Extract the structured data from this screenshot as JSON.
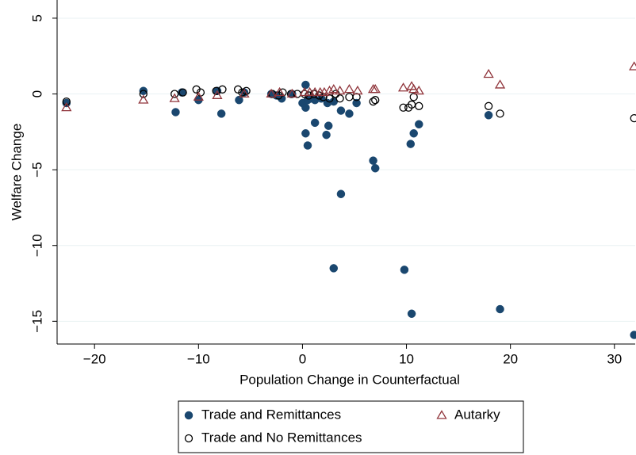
{
  "chart_data": {
    "type": "scatter",
    "x_label": "Population Change in Counterfactual",
    "y_label": "Welfare Change",
    "xlim": [
      -23.6,
      32
    ],
    "ylim": [
      -16.5,
      6.2
    ],
    "xticks": [
      {
        "value": -20,
        "label": "−20"
      },
      {
        "value": -10,
        "label": "−10"
      },
      0,
      10,
      20,
      30
    ],
    "yticks": [
      5,
      0,
      {
        "value": -5,
        "label": "−5"
      },
      {
        "value": -10,
        "label": "−10"
      },
      {
        "value": -15,
        "label": "−15"
      }
    ],
    "grid": true,
    "legend": "bottom",
    "series": [
      {
        "name": "Trade and Remittances",
        "color": "#1a476f",
        "marker": "filled-circle",
        "x": [
          -22.7,
          -15.3,
          -12.2,
          -11.6,
          -10,
          -8.2,
          -7.8,
          -6.1,
          -5.6,
          -3,
          -2.5,
          -2,
          -1,
          0,
          0.3,
          0.3,
          0.5,
          0.8,
          1.2,
          1.8,
          2.4,
          3,
          3.7,
          4.5,
          5.2,
          0.3,
          0.5,
          1.2,
          2.3,
          2.5,
          3.7,
          6.8,
          7,
          3,
          9.8,
          10.5,
          10.4,
          10.7,
          11.2,
          17.9,
          19,
          31.9
        ],
        "values": [
          -0.6,
          0.2,
          -1.2,
          0.1,
          -0.4,
          0.2,
          -1.3,
          -0.4,
          0.1,
          0,
          -0.1,
          -0.3,
          0,
          -0.6,
          0.6,
          -0.9,
          -0.4,
          -0.3,
          -0.4,
          -0.3,
          -0.6,
          -0.5,
          -1.1,
          -1.3,
          -0.6,
          -2.6,
          -3.4,
          -1.9,
          -2.7,
          -2.1,
          -6.6,
          -4.4,
          -4.9,
          -11.5,
          -11.6,
          -14.5,
          -3.3,
          -2.6,
          -2,
          -1.4,
          -14.2,
          -15.9
        ]
      },
      {
        "name": "Trade and No Remittances",
        "color": "#000000",
        "marker": "hollow-circle",
        "x": [
          -22.7,
          -15.3,
          -12.3,
          -11.5,
          -10.2,
          -9.8,
          -8.3,
          -7.7,
          -6.2,
          -5.8,
          -5.4,
          -2.9,
          -2.3,
          -1.9,
          -1.1,
          -0.5,
          0.2,
          0.6,
          1.1,
          1.6,
          2,
          2.6,
          3.2,
          3.6,
          4.5,
          5.2,
          6.8,
          7,
          9.7,
          10.2,
          10.5,
          10.7,
          11.2,
          17.9,
          19,
          31.9
        ],
        "values": [
          -0.5,
          0,
          0,
          0.1,
          0.3,
          0.1,
          0.2,
          0.3,
          0.3,
          0.1,
          0.2,
          0,
          -0.1,
          0.1,
          0,
          0,
          0,
          -0.1,
          0,
          -0.1,
          -0.2,
          -0.3,
          0,
          -0.3,
          -0.2,
          -0.2,
          -0.5,
          -0.4,
          -0.9,
          -0.9,
          -0.7,
          -0.2,
          -0.8,
          -0.8,
          -1.3,
          -1.6
        ]
      },
      {
        "name": "Autarky",
        "color": "#90353b",
        "marker": "triangle",
        "x": [
          -22.7,
          -15.3,
          -12.3,
          -10,
          -8.2,
          -5.6,
          -3,
          -2.2,
          -1,
          0.2,
          0.7,
          1.2,
          1.7,
          2.1,
          2.6,
          3,
          3.6,
          4.5,
          5.3,
          6.8,
          7,
          9.7,
          10.5,
          10.7,
          11.2,
          17.9,
          19,
          31.9
        ],
        "values": [
          -0.9,
          -0.4,
          -0.3,
          -0.2,
          -0.1,
          0,
          0,
          0.1,
          0,
          0.1,
          0.1,
          0.1,
          0.1,
          0.1,
          0.2,
          0.3,
          0.2,
          0.3,
          0.2,
          0.3,
          0.3,
          0.4,
          0.5,
          0.3,
          0.2,
          1.3,
          0.6,
          1.8
        ]
      }
    ]
  }
}
